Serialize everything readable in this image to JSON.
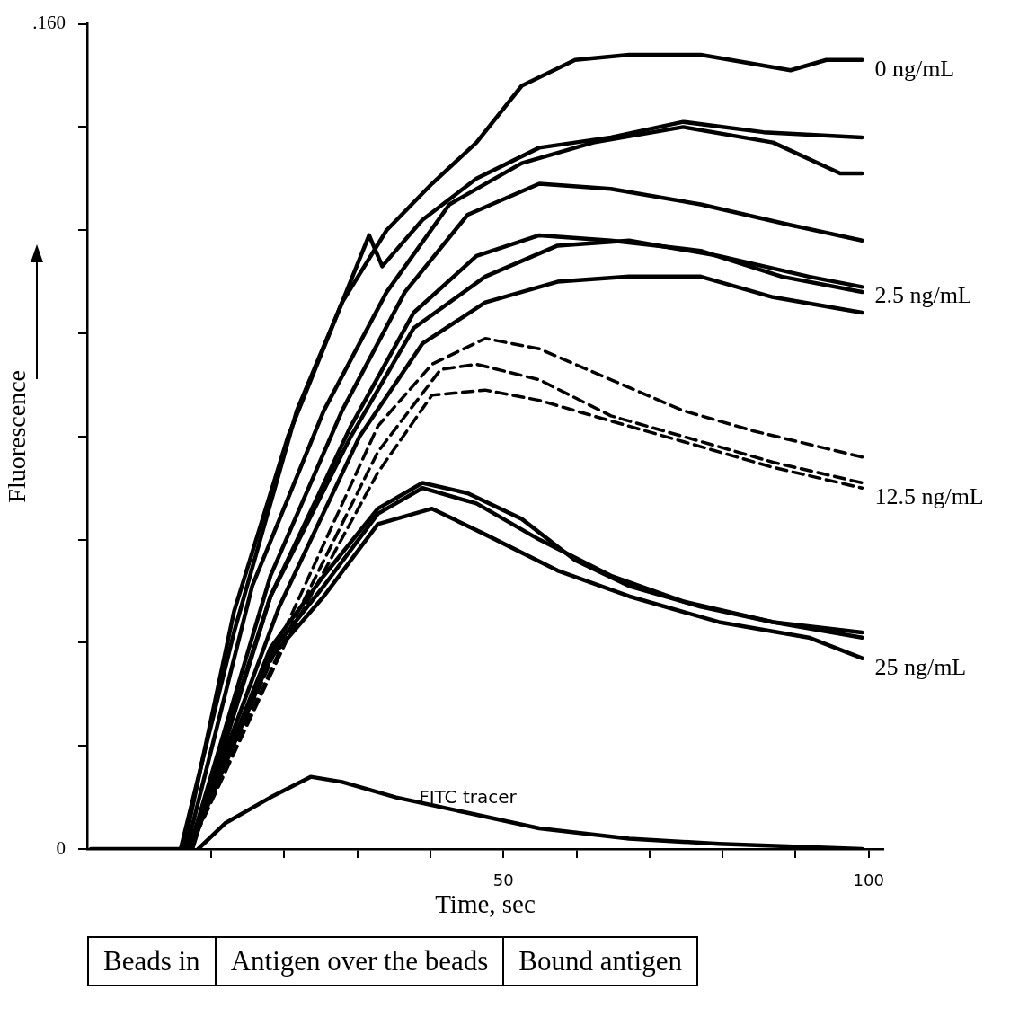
{
  "chart_data": {
    "type": "line",
    "xlabel": "Time, sec",
    "ylabel": "Fluorescence",
    "xlim": [
      -7,
      102
    ],
    "ylim": [
      0,
      0.16
    ],
    "xticks": [
      {
        "value": 10,
        "label": null
      },
      {
        "value": 20,
        "label": null
      },
      {
        "value": 30,
        "label": null
      },
      {
        "value": 40,
        "label": null
      },
      {
        "value": 50,
        "label": "50"
      },
      {
        "value": 60,
        "label": null
      },
      {
        "value": 70,
        "label": null
      },
      {
        "value": 80,
        "label": null
      },
      {
        "value": 90,
        "label": null
      },
      {
        "value": 100,
        "label": "100"
      }
    ],
    "yticks": [
      {
        "value": 0,
        "label": "0"
      },
      {
        "value": 0.02,
        "label": null
      },
      {
        "value": 0.04,
        "label": null
      },
      {
        "value": 0.06,
        "label": null
      },
      {
        "value": 0.08,
        "label": null
      },
      {
        "value": 0.1,
        "label": null
      },
      {
        "value": 0.12,
        "label": null
      },
      {
        "value": 0.14,
        "label": null
      },
      {
        "value": 0.16,
        "label": ".160"
      }
    ],
    "grid": false,
    "marker": "none",
    "line_style": "solid",
    "series": [
      {
        "name": "0 ng/mL",
        "color": "#000000",
        "x": [
          -6.5,
          5.8,
          13.1,
          21.7,
          27.9,
          34.0,
          40.2,
          46.3,
          52.5,
          59.8,
          67.2,
          77.0,
          89.3,
          94.2,
          99.1
        ],
        "values": [
          0,
          0,
          0.042,
          0.085,
          0.106,
          0.12,
          0.129,
          0.137,
          0.148,
          0.153,
          0.154,
          0.154,
          0.151,
          0.153,
          0.153
        ]
      },
      {
        "color": "#000000",
        "x": [
          6.2,
          13.1,
          20.5,
          27.9,
          31.6,
          33.4,
          38.9,
          46.3,
          54.9,
          64.7,
          74.6,
          85.6,
          99.1
        ],
        "values": [
          0,
          0.046,
          0.08,
          0.106,
          0.119,
          0.113,
          0.122,
          0.13,
          0.136,
          0.138,
          0.141,
          0.139,
          0.138
        ]
      },
      {
        "color": "#000000",
        "x": [
          6.6,
          15.6,
          25.4,
          34.0,
          42.6,
          52.5,
          62.3,
          74.6,
          86.9,
          96.1,
          99.1
        ],
        "values": [
          0,
          0.051,
          0.085,
          0.108,
          0.125,
          0.133,
          0.137,
          0.14,
          0.137,
          0.131,
          0.131
        ]
      },
      {
        "color": "#000000",
        "x": [
          7.0,
          18.1,
          27.9,
          36.5,
          45.1,
          54.9,
          64.7,
          77.0,
          89.3,
          99.1
        ],
        "values": [
          0,
          0.053,
          0.085,
          0.108,
          0.123,
          0.129,
          0.128,
          0.125,
          0.121,
          0.118
        ]
      },
      {
        "color": "#000000",
        "x": [
          7.0,
          18.1,
          29.1,
          37.7,
          46.3,
          54.9,
          64.7,
          77.0,
          88.1,
          99.1
        ],
        "values": [
          0,
          0.049,
          0.082,
          0.104,
          0.115,
          0.119,
          0.118,
          0.116,
          0.111,
          0.108
        ]
      },
      {
        "name": "2.5 ng/mL",
        "color": "#000000",
        "x": [
          7.4,
          18.1,
          29.1,
          37.7,
          47.5,
          57.4,
          67.2,
          79.5,
          91.8,
          99.1
        ],
        "values": [
          0,
          0.049,
          0.08,
          0.101,
          0.111,
          0.117,
          0.118,
          0.115,
          0.111,
          0.109
        ]
      },
      {
        "color": "#000000",
        "x": [
          7.0,
          19.3,
          30.3,
          38.9,
          47.5,
          57.4,
          67.2,
          77.0,
          86.9,
          99.1
        ],
        "values": [
          0,
          0.047,
          0.08,
          0.098,
          0.106,
          0.11,
          0.111,
          0.111,
          0.107,
          0.104
        ]
      },
      {
        "color": "#000000",
        "line_style": "dashed",
        "x": [
          7.0,
          20.5,
          32.8,
          40.2,
          47.5,
          54.9,
          64.7,
          74.6,
          84.4,
          99.1
        ],
        "values": [
          0,
          0.044,
          0.082,
          0.094,
          0.099,
          0.097,
          0.091,
          0.085,
          0.081,
          0.076
        ]
      },
      {
        "color": "#000000",
        "line_style": "dashed",
        "x": [
          7.0,
          20.5,
          32.8,
          41.4,
          46.3,
          54.9,
          64.7,
          74.6,
          86.9,
          99.1
        ],
        "values": [
          0,
          0.042,
          0.077,
          0.093,
          0.094,
          0.091,
          0.084,
          0.08,
          0.075,
          0.071
        ]
      },
      {
        "name": "12.5 ng/mL",
        "color": "#000000",
        "line_style": "dashed",
        "x": [
          7.0,
          20.5,
          32.8,
          40.2,
          47.5,
          54.9,
          64.7,
          74.6,
          86.9,
          99.1
        ],
        "values": [
          0,
          0.041,
          0.073,
          0.088,
          0.089,
          0.087,
          0.083,
          0.079,
          0.074,
          0.07
        ]
      },
      {
        "color": "#000000",
        "x": [
          7.0,
          18.1,
          25.4,
          32.8,
          38.9,
          45.1,
          52.5,
          59.8,
          67.2,
          77.0,
          86.9,
          99.1
        ],
        "values": [
          0,
          0.039,
          0.053,
          0.066,
          0.071,
          0.069,
          0.064,
          0.056,
          0.051,
          0.047,
          0.044,
          0.042
        ]
      },
      {
        "color": "#000000",
        "x": [
          7.0,
          18.1,
          25.4,
          32.8,
          38.9,
          46.3,
          54.9,
          64.7,
          74.6,
          86.9,
          99.1
        ],
        "values": [
          0,
          0.038,
          0.051,
          0.065,
          0.07,
          0.067,
          0.06,
          0.053,
          0.048,
          0.044,
          0.041
        ]
      },
      {
        "name": "25 ng/mL",
        "color": "#000000",
        "x": [
          7.0,
          18.1,
          25.4,
          32.8,
          40.2,
          47.5,
          57.4,
          67.2,
          79.5,
          91.8,
          99.1
        ],
        "values": [
          0,
          0.037,
          0.049,
          0.063,
          0.066,
          0.061,
          0.054,
          0.049,
          0.044,
          0.041,
          0.037
        ]
      },
      {
        "name": "FITC tracer",
        "color": "#000000",
        "x": [
          8.2,
          11.9,
          18.1,
          23.6,
          27.9,
          35.3,
          45.1,
          54.9,
          67.2,
          79.5,
          99.1
        ],
        "values": [
          0,
          0.005,
          0.01,
          0.014,
          0.013,
          0.01,
          0.007,
          0.004,
          0.002,
          0.001,
          0
        ]
      }
    ],
    "annotations": [
      "Beads in",
      "Antigen over the beads",
      "Bound antigen"
    ]
  }
}
